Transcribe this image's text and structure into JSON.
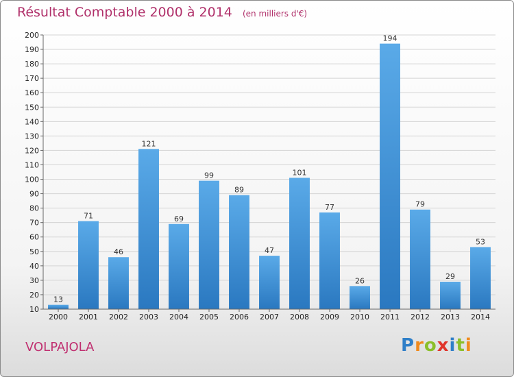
{
  "chart_data": {
    "type": "bar",
    "title": "Résultat Comptable 2000 à 2014",
    "subtitle": "(en milliers d'€)",
    "categories": [
      "2000",
      "2001",
      "2002",
      "2003",
      "2004",
      "2005",
      "2006",
      "2007",
      "2008",
      "2009",
      "2010",
      "2011",
      "2012",
      "2013",
      "2014"
    ],
    "values": [
      13,
      71,
      46,
      121,
      69,
      99,
      89,
      47,
      101,
      77,
      26,
      194,
      79,
      29,
      53
    ],
    "ylim": [
      10,
      200
    ],
    "yticks": [
      10,
      20,
      30,
      40,
      50,
      60,
      70,
      80,
      90,
      100,
      110,
      120,
      130,
      140,
      150,
      160,
      170,
      180,
      190,
      200
    ],
    "grid": true,
    "bar_color": "#3d8fd6"
  },
  "footer": {
    "commune": "VOLPAJOLA",
    "logo_letters": [
      {
        "ch": "P",
        "color": "#2f7fc8"
      },
      {
        "ch": "r",
        "color": "#f08a1c"
      },
      {
        "ch": "o",
        "color": "#8bbf2a"
      },
      {
        "ch": "x",
        "color": "#e0352b"
      },
      {
        "ch": "i",
        "color": "#2f7fc8"
      },
      {
        "ch": "t",
        "color": "#8bbf2a"
      },
      {
        "ch": "i",
        "color": "#f08a1c"
      }
    ]
  }
}
